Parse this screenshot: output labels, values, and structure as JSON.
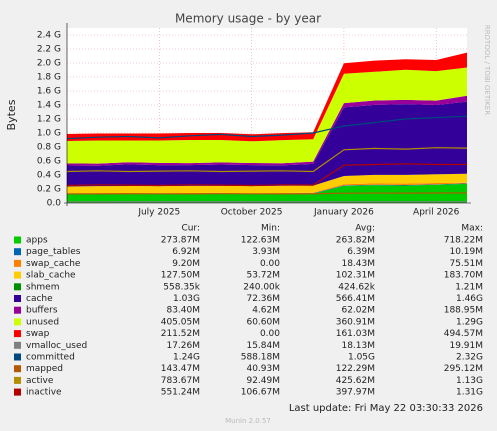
{
  "chart_data": {
    "type": "stacked-area",
    "title": "Memory usage - by year",
    "y_label": "Bytes",
    "side_label": "RRDTOOL / TOBI OETIKER",
    "footer": "Last update: Fri May 22 03:30:33 2026",
    "version": "Munin 2.0.57",
    "legend_columns": [
      "Cur:",
      "Min:",
      "Avg:",
      "Max:"
    ],
    "x": [
      "2025-04",
      "2025-05",
      "2025-06",
      "2025-07",
      "2025-08",
      "2025-09",
      "2025-10",
      "2025-11",
      "2025-12",
      "2026-01",
      "2026-02",
      "2026-03",
      "2026-04",
      "2026-05"
    ],
    "xlim": [
      "2025-04",
      "2026-05"
    ],
    "xticks": [
      {
        "value": "2025-07",
        "label": "July 2025"
      },
      {
        "value": "2025-10",
        "label": "October 2025"
      },
      {
        "value": "2026-01",
        "label": "January 2026"
      },
      {
        "value": "2026-04",
        "label": "April 2026"
      }
    ],
    "ylim": [
      0,
      2500000000.0
    ],
    "yticks": [
      {
        "value": 0,
        "label": "0.0"
      },
      {
        "value": 200000000.0,
        "label": "0.2 G"
      },
      {
        "value": 400000000.0,
        "label": "0.4 G"
      },
      {
        "value": 600000000.0,
        "label": "0.6 G"
      },
      {
        "value": 800000000.0,
        "label": "0.8 G"
      },
      {
        "value": 1000000000.0,
        "label": "1.0 G"
      },
      {
        "value": 1200000000.0,
        "label": "1.2 G"
      },
      {
        "value": 1400000000.0,
        "label": "1.4 G"
      },
      {
        "value": 1600000000.0,
        "label": "1.6 G"
      },
      {
        "value": 1800000000.0,
        "label": "1.8 G"
      },
      {
        "value": 2000000000.0,
        "label": "2.0 G"
      },
      {
        "value": 2200000000.0,
        "label": "2.2 G"
      },
      {
        "value": 2400000000.0,
        "label": "2.4 G"
      }
    ],
    "grid": true,
    "series": [
      {
        "name": "apps",
        "color": "#00CC00",
        "kind": "area",
        "stats": [
          "273.87M",
          "122.63M",
          "263.82M",
          "718.22M"
        ],
        "values": [
          128000000.0,
          130000000.0,
          129000000.0,
          131000000.0,
          130000000.0,
          132000000.0,
          129000000.0,
          131000000.0,
          133000000.0,
          245000000.0,
          255000000.0,
          250000000.0,
          260000000.0,
          274000000.0
        ]
      },
      {
        "name": "page_tables",
        "color": "#0066B3",
        "kind": "area",
        "stats": [
          "6.92M",
          "3.93M",
          "6.39M",
          "10.19M"
        ],
        "values": [
          5800000.0,
          5900000.0,
          6000000.0,
          5900000.0,
          6100000.0,
          6000000.0,
          5900000.0,
          6200000.0,
          6100000.0,
          6500000.0,
          6600000.0,
          6800000.0,
          6700000.0,
          6900000.0
        ]
      },
      {
        "name": "swap_cache",
        "color": "#FF8000",
        "kind": "area",
        "stats": [
          "9.20M",
          "0.00",
          "18.43M",
          "75.51M"
        ],
        "values": [
          4000000.0,
          5000000.0,
          6000000.0,
          5000000.0,
          7000000.0,
          6000000.0,
          5000000.0,
          6000000.0,
          7000000.0,
          16000000.0,
          18000000.0,
          20000000.0,
          19000000.0,
          9200000.0
        ]
      },
      {
        "name": "slab_cache",
        "color": "#FFCC00",
        "kind": "area",
        "stats": [
          "127.50M",
          "53.72M",
          "102.31M",
          "183.70M"
        ],
        "values": [
          98000000.0,
          100000000.0,
          101000000.0,
          99000000.0,
          102000000.0,
          100000000.0,
          101000000.0,
          103000000.0,
          102000000.0,
          118000000.0,
          122000000.0,
          125000000.0,
          124000000.0,
          127500000.0
        ]
      },
      {
        "name": "shmem",
        "color": "#008F00",
        "kind": "area",
        "stats": [
          "558.35k",
          "240.00k",
          "424.62k",
          "1.21M"
        ],
        "values": [
          420000.0,
          430000.0,
          410000.0,
          440000.0,
          420000.0,
          430000.0,
          420000.0,
          410000.0,
          430000.0,
          540000.0,
          550000.0,
          560000.0,
          550000.0,
          558000.0
        ]
      },
      {
        "name": "cache",
        "color": "#330099",
        "kind": "area",
        "stats": [
          "1.03G",
          "72.36M",
          "566.41M",
          "1.46G"
        ],
        "values": [
          300000000.0,
          290000000.0,
          310000000.0,
          300000000.0,
          295000000.0,
          305000000.0,
          300000000.0,
          290000000.0,
          310000000.0,
          980000000.0,
          1000000000.0,
          1010000000.0,
          990000000.0,
          1030000000.0
        ]
      },
      {
        "name": "buffers",
        "color": "#990099",
        "kind": "area",
        "stats": [
          "83.40M",
          "4.62M",
          "62.02M",
          "188.95M"
        ],
        "values": [
          30000000.0,
          31000000.0,
          30000000.0,
          32000000.0,
          30000000.0,
          31000000.0,
          30000000.0,
          31000000.0,
          32000000.0,
          60000000.0,
          62000000.0,
          61000000.0,
          63000000.0,
          83400000.0
        ]
      },
      {
        "name": "unused",
        "color": "#CCFF00",
        "kind": "area",
        "stats": [
          "405.05M",
          "60.60M",
          "360.91M",
          "1.29G"
        ],
        "values": [
          320000000.0,
          330000000.0,
          310000000.0,
          320000000.0,
          330000000.0,
          320000000.0,
          310000000.0,
          330000000.0,
          320000000.0,
          420000000.0,
          410000000.0,
          430000000.0,
          420000000.0,
          405000000.0
        ]
      },
      {
        "name": "swap",
        "color": "#FF0000",
        "kind": "area",
        "stats": [
          "211.52M",
          "0.00",
          "161.03M",
          "494.57M"
        ],
        "values": [
          100000000.0,
          100000000.0,
          100000000.0,
          100000000.0,
          100000000.0,
          100000000.0,
          100000000.0,
          100000000.0,
          100000000.0,
          150000000.0,
          160000000.0,
          150000000.0,
          160000000.0,
          212000000.0
        ]
      },
      {
        "name": "vmalloc_used",
        "color": "#808080",
        "kind": "line",
        "stats": [
          "17.26M",
          "15.84M",
          "18.13M",
          "19.91M"
        ],
        "values": [
          15000000.0,
          15500000.0,
          16000000.0,
          15800000.0,
          16000000.0,
          16200000.0,
          16000000.0,
          16300000.0,
          16500000.0,
          17000000.0,
          17200000.0,
          17000000.0,
          17300000.0,
          17260000.0
        ]
      },
      {
        "name": "committed",
        "color": "#00487D",
        "kind": "line",
        "stats": [
          "1.24G",
          "588.18M",
          "1.05G",
          "2.32G"
        ],
        "values": [
          920000000.0,
          940000000.0,
          950000000.0,
          930000000.0,
          960000000.0,
          980000000.0,
          950000000.0,
          970000000.0,
          1000000000.0,
          1100000000.0,
          1150000000.0,
          1200000000.0,
          1220000000.0,
          1240000000.0
        ]
      },
      {
        "name": "mapped",
        "color": "#B35A00",
        "kind": "line",
        "stats": [
          "143.47M",
          "40.93M",
          "122.29M",
          "295.12M"
        ],
        "values": [
          130000000.0,
          130000000.0,
          132000000.0,
          131000000.0,
          130000000.0,
          133000000.0,
          131000000.0,
          130000000.0,
          132000000.0,
          140000000.0,
          142000000.0,
          141000000.0,
          143000000.0,
          143500000.0
        ]
      },
      {
        "name": "active",
        "color": "#B38F00",
        "kind": "line",
        "stats": [
          "783.67M",
          "92.49M",
          "425.62M",
          "1.13G"
        ],
        "values": [
          450000000.0,
          460000000.0,
          450000000.0,
          455000000.0,
          460000000.0,
          450000000.0,
          455000000.0,
          460000000.0,
          450000000.0,
          760000000.0,
          780000000.0,
          770000000.0,
          790000000.0,
          784000000.0
        ]
      },
      {
        "name": "inactive",
        "color": "#B30000",
        "kind": "line",
        "stats": [
          "551.24M",
          "106.67M",
          "397.97M",
          "1.31G"
        ],
        "values": [
          250000000.0,
          260000000.0,
          255000000.0,
          250000000.0,
          260000000.0,
          255000000.0,
          250000000.0,
          260000000.0,
          255000000.0,
          540000000.0,
          550000000.0,
          560000000.0,
          550000000.0,
          551000000.0
        ]
      }
    ]
  }
}
